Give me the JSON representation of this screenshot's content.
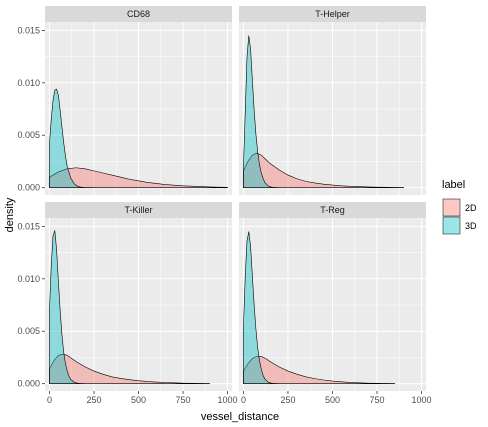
{
  "chart_data": {
    "type": "area",
    "xlabel": "vessel_distance",
    "ylabel": "density",
    "xlim": [
      -25,
      1025
    ],
    "ylim": [
      -0.0007,
      0.0158
    ],
    "x_ticks": [
      "0",
      "250",
      "500",
      "750",
      "1000"
    ],
    "x_tick_values": [
      0,
      250,
      500,
      750,
      1000
    ],
    "y_ticks": [
      "0.000",
      "0.005",
      "0.010",
      "0.015"
    ],
    "y_tick_values": [
      0,
      0.005,
      0.01,
      0.015
    ],
    "grid": true,
    "legend": {
      "title": "label",
      "position": "right",
      "entries": [
        {
          "name": "2D",
          "color": "#F8766D"
        },
        {
          "name": "3D",
          "color": "#00BFC4"
        }
      ]
    },
    "panels": [
      {
        "title": "CD68",
        "series": [
          {
            "name": "2D",
            "x": [
              0,
              50,
              100,
              150,
              200,
              250,
              300,
              350,
              400,
              450,
              500,
              550,
              600,
              650,
              700,
              750,
              800,
              850,
              900,
              950,
              1000
            ],
            "y": [
              0.001,
              0.0015,
              0.0018,
              0.0019,
              0.0018,
              0.0016,
              0.0014,
              0.0012,
              0.001,
              0.0008,
              0.00065,
              0.0005,
              0.0004,
              0.0003,
              0.00024,
              0.00018,
              0.00014,
              0.0001,
              7e-05,
              5e-05,
              4e-05
            ]
          },
          {
            "name": "3D",
            "x": [
              0,
              10,
              20,
              30,
              40,
              50,
              60,
              70,
              80,
              90,
              100,
              120,
              140,
              160,
              180,
              200,
              250
            ],
            "y": [
              0.0042,
              0.0065,
              0.0083,
              0.0093,
              0.0094,
              0.0088,
              0.0074,
              0.0058,
              0.0043,
              0.003,
              0.002,
              0.0009,
              0.00035,
              0.00012,
              4e-05,
              1e-05,
              0
            ]
          }
        ]
      },
      {
        "title": "T-Helper",
        "series": [
          {
            "name": "2D",
            "x": [
              0,
              25,
              50,
              75,
              100,
              125,
              150,
              200,
              250,
              300,
              350,
              400,
              450,
              500,
              550,
              600,
              650,
              700,
              750,
              800,
              850,
              900
            ],
            "y": [
              0.0016,
              0.0025,
              0.0031,
              0.0033,
              0.0031,
              0.0027,
              0.0023,
              0.0017,
              0.0012,
              0.00085,
              0.0006,
              0.00045,
              0.00033,
              0.00025,
              0.00018,
              0.00013,
              0.0001,
              7e-05,
              5e-05,
              3e-05,
              2e-05,
              1e-05
            ]
          },
          {
            "name": "3D",
            "x": [
              0,
              10,
              20,
              30,
              40,
              50,
              60,
              70,
              80,
              90,
              100,
              110,
              120,
              140,
              160,
              180,
              200
            ],
            "y": [
              0.0021,
              0.0072,
              0.0125,
              0.0145,
              0.0132,
              0.0103,
              0.0074,
              0.0051,
              0.0034,
              0.0022,
              0.0014,
              0.0009,
              0.0005,
              0.00015,
              4e-05,
              1e-05,
              0
            ]
          }
        ]
      },
      {
        "title": "T-Killer",
        "series": [
          {
            "name": "2D",
            "x": [
              0,
              25,
              50,
              75,
              100,
              125,
              150,
              200,
              250,
              300,
              350,
              400,
              450,
              500,
              550,
              600,
              650,
              700,
              750,
              800,
              850,
              900
            ],
            "y": [
              0.0014,
              0.0022,
              0.0027,
              0.0028,
              0.0027,
              0.0024,
              0.0021,
              0.0016,
              0.0012,
              0.0009,
              0.00065,
              0.0005,
              0.00038,
              0.00028,
              0.0002,
              0.00015,
              0.00011,
              8e-05,
              5e-05,
              3e-05,
              2e-05,
              1e-05
            ]
          },
          {
            "name": "3D",
            "x": [
              0,
              10,
              20,
              30,
              40,
              50,
              60,
              70,
              80,
              90,
              100,
              110,
              120,
              140,
              160,
              180,
              200
            ],
            "y": [
              0.007,
              0.0112,
              0.0141,
              0.0146,
              0.0128,
              0.0098,
              0.007,
              0.0047,
              0.003,
              0.0019,
              0.0012,
              0.0007,
              0.0004,
              0.00012,
              3e-05,
              1e-05,
              0
            ]
          }
        ]
      },
      {
        "title": "T-Reg",
        "series": [
          {
            "name": "2D",
            "x": [
              0,
              25,
              50,
              75,
              100,
              125,
              150,
              200,
              250,
              300,
              350,
              400,
              450,
              500,
              550,
              600,
              650,
              700,
              750,
              800,
              850
            ],
            "y": [
              0.0012,
              0.0019,
              0.0024,
              0.0026,
              0.0026,
              0.0024,
              0.0021,
              0.0016,
              0.0012,
              0.0009,
              0.00065,
              0.00048,
              0.00035,
              0.00025,
              0.00018,
              0.00012,
              8e-05,
              5e-05,
              3e-05,
              2e-05,
              1e-05
            ]
          },
          {
            "name": "3D",
            "x": [
              0,
              10,
              20,
              30,
              40,
              50,
              60,
              70,
              80,
              90,
              100,
              110,
              120,
              140,
              160,
              180,
              200
            ],
            "y": [
              0.0055,
              0.0102,
              0.0136,
              0.0145,
              0.0131,
              0.0103,
              0.0075,
              0.0052,
              0.0034,
              0.0022,
              0.0014,
              0.0008,
              0.00045,
              0.00013,
              3e-05,
              1e-05,
              0
            ]
          }
        ]
      }
    ]
  }
}
